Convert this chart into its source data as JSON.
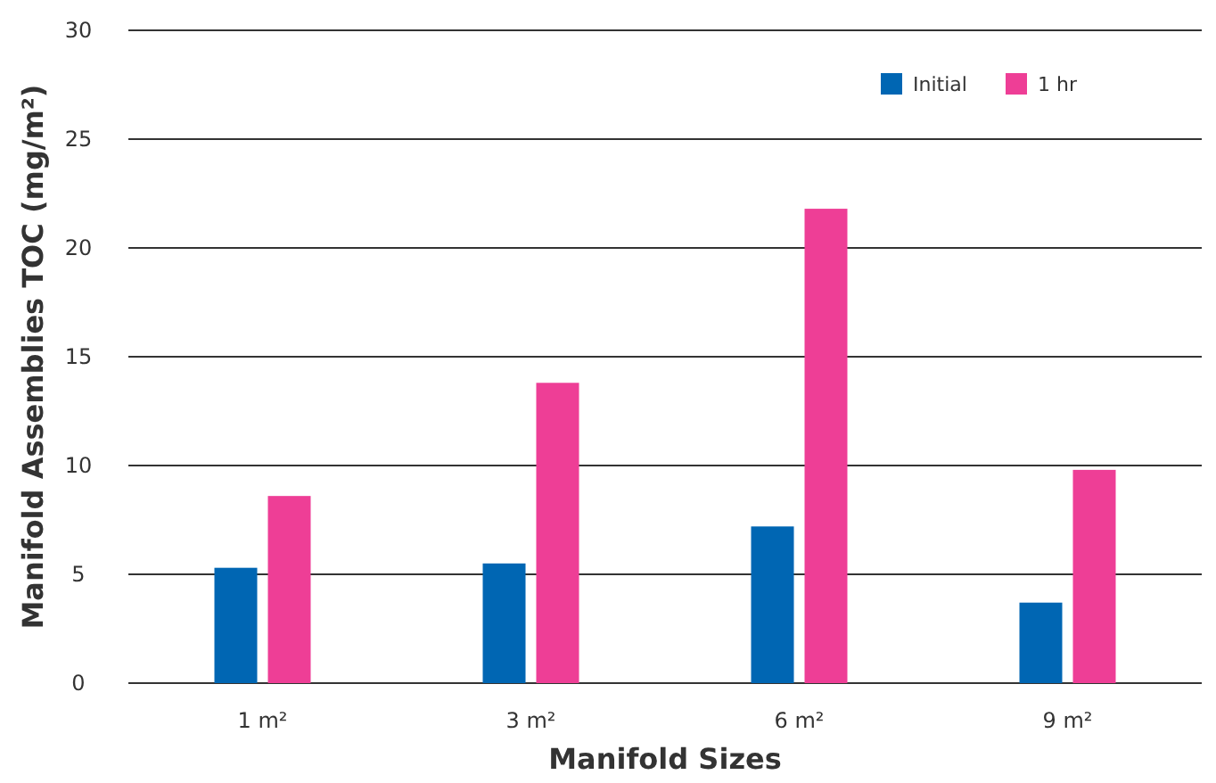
{
  "chart_data": {
    "type": "bar",
    "xlabel": "Manifold Sizes",
    "ylabel": "Manifold Assemblies TOC (mg/m²)",
    "categories": [
      "1 m²",
      "3 m²",
      "6 m²",
      "9 m²"
    ],
    "series": [
      {
        "name": "Initial",
        "color": "#0066b3",
        "values": [
          5.3,
          5.5,
          7.2,
          3.7
        ]
      },
      {
        "name": "1 hr",
        "color": "#ee3e96",
        "values": [
          8.6,
          13.8,
          21.8,
          9.8
        ]
      }
    ],
    "ylim": [
      0,
      30
    ],
    "yticks": [
      0,
      5,
      10,
      15,
      20,
      25,
      30
    ],
    "grid": "y",
    "legend": "top right"
  }
}
